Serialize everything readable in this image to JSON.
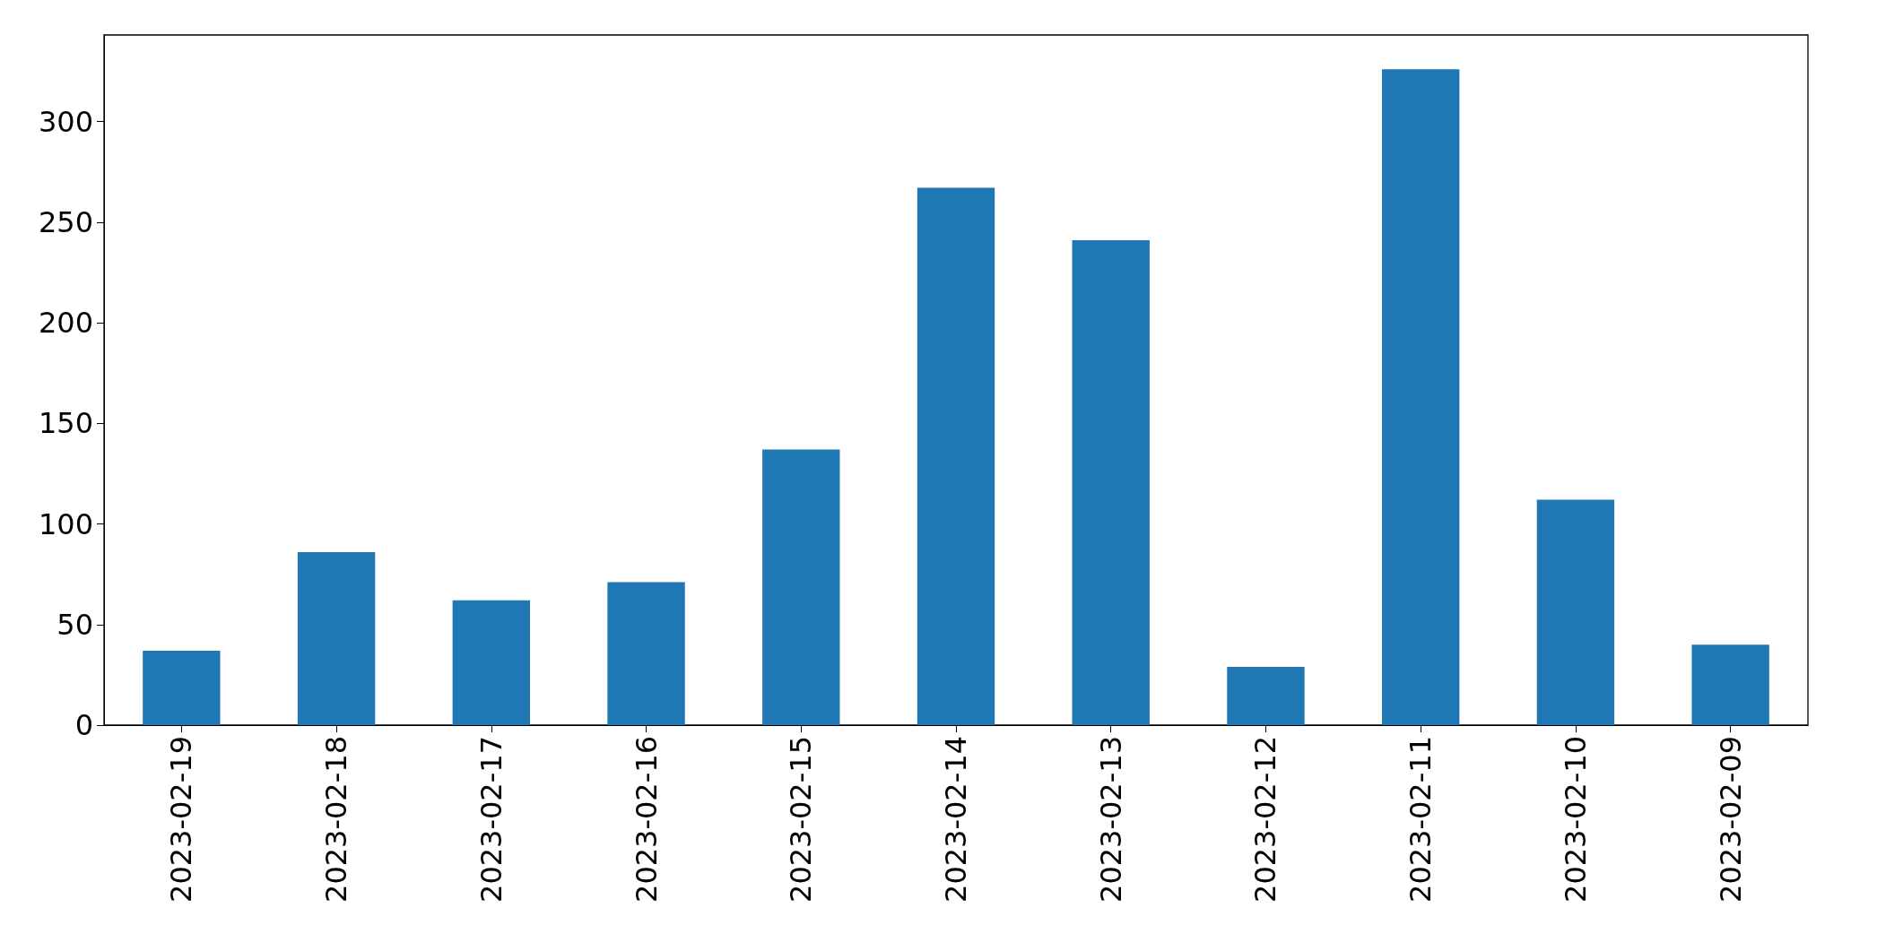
{
  "chart_data": {
    "type": "bar",
    "categories": [
      "2023-02-19",
      "2023-02-18",
      "2023-02-17",
      "2023-02-16",
      "2023-02-15",
      "2023-02-14",
      "2023-02-13",
      "2023-02-12",
      "2023-02-11",
      "2023-02-10",
      "2023-02-09"
    ],
    "values": [
      37,
      86,
      62,
      71,
      137,
      267,
      241,
      29,
      326,
      112,
      40
    ],
    "color": "#1f77b4",
    "ylim": [
      0,
      343
    ],
    "yticks": [
      0,
      50,
      100,
      150,
      200,
      250,
      300
    ],
    "grid": false
  }
}
